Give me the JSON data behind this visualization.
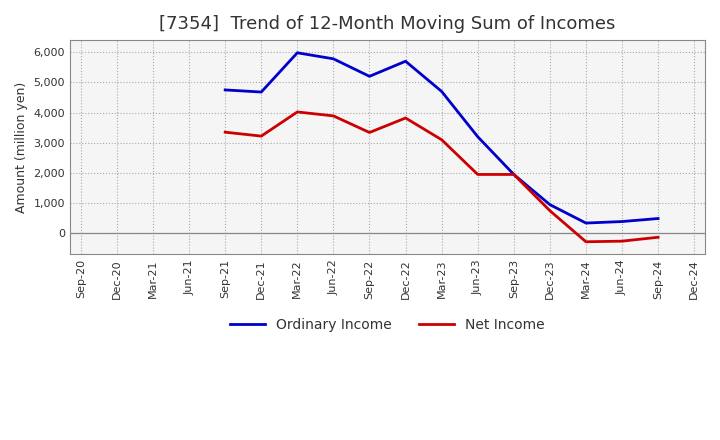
{
  "title": "[7354]  Trend of 12-Month Moving Sum of Incomes",
  "ylabel": "Amount (million yen)",
  "background_color": "#ffffff",
  "plot_bg_color": "#f5f5f5",
  "grid_color": "#aaaaaa",
  "x_labels": [
    "Sep-20",
    "Dec-20",
    "Mar-21",
    "Jun-21",
    "Sep-21",
    "Dec-21",
    "Mar-22",
    "Jun-22",
    "Sep-22",
    "Dec-22",
    "Mar-23",
    "Jun-23",
    "Sep-23",
    "Dec-23",
    "Mar-24",
    "Jun-24",
    "Sep-24",
    "Dec-24"
  ],
  "ordinary_income": [
    null,
    null,
    null,
    null,
    4750,
    4680,
    5980,
    5780,
    5200,
    5700,
    4700,
    3200,
    1950,
    950,
    340,
    390,
    490,
    null
  ],
  "net_income": [
    null,
    null,
    null,
    null,
    3350,
    3220,
    4020,
    3890,
    3340,
    3820,
    3100,
    1950,
    1950,
    750,
    -280,
    -260,
    -130,
    null
  ],
  "ordinary_color": "#0000cc",
  "net_color": "#cc0000",
  "ylim_min": -700,
  "ylim_max": 6400,
  "yticks": [
    0,
    1000,
    2000,
    3000,
    4000,
    5000,
    6000
  ],
  "line_width": 2.0,
  "title_fontsize": 13,
  "title_color": "#333333",
  "axis_label_fontsize": 9,
  "tick_fontsize": 8,
  "legend_labels": [
    "Ordinary Income",
    "Net Income"
  ]
}
